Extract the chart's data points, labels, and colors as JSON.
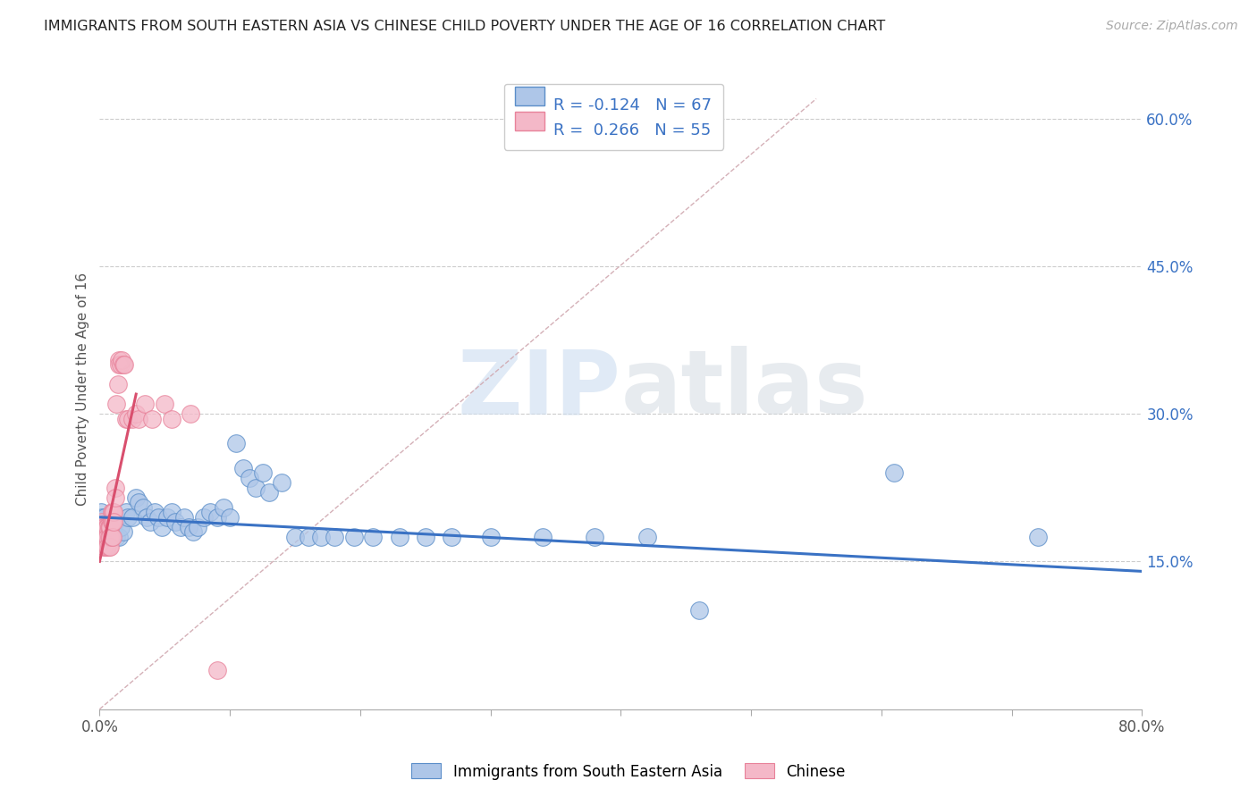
{
  "title": "IMMIGRANTS FROM SOUTH EASTERN ASIA VS CHINESE CHILD POVERTY UNDER THE AGE OF 16 CORRELATION CHART",
  "source": "Source: ZipAtlas.com",
  "ylabel": "Child Poverty Under the Age of 16",
  "xlim": [
    0.0,
    0.8
  ],
  "ylim": [
    0.0,
    0.65
  ],
  "xticks": [
    0.0,
    0.1,
    0.2,
    0.3,
    0.4,
    0.5,
    0.6,
    0.7,
    0.8
  ],
  "yticks_right": [
    0.15,
    0.3,
    0.45,
    0.6
  ],
  "ytick_labels_right": [
    "15.0%",
    "30.0%",
    "45.0%",
    "60.0%"
  ],
  "watermark_zip": "ZIP",
  "watermark_atlas": "atlas",
  "legend_blue_r": "-0.124",
  "legend_blue_n": "67",
  "legend_pink_r": "0.266",
  "legend_pink_n": "55",
  "legend_label_blue": "Immigrants from South Eastern Asia",
  "legend_label_pink": "Chinese",
  "blue_fill": "#aec6e8",
  "pink_fill": "#f4b8c8",
  "blue_edge": "#5b8ec9",
  "pink_edge": "#e8829a",
  "blue_line_color": "#3a72c4",
  "pink_line_color": "#d94f6e",
  "diagonal_color": "#d0a8b0",
  "blue_scatter_x": [
    0.001,
    0.002,
    0.002,
    0.003,
    0.003,
    0.004,
    0.004,
    0.005,
    0.005,
    0.006,
    0.007,
    0.007,
    0.008,
    0.009,
    0.01,
    0.012,
    0.013,
    0.015,
    0.016,
    0.018,
    0.02,
    0.022,
    0.025,
    0.028,
    0.03,
    0.033,
    0.036,
    0.039,
    0.042,
    0.045,
    0.048,
    0.052,
    0.055,
    0.058,
    0.062,
    0.065,
    0.068,
    0.072,
    0.075,
    0.08,
    0.085,
    0.09,
    0.095,
    0.1,
    0.105,
    0.11,
    0.115,
    0.12,
    0.125,
    0.13,
    0.14,
    0.15,
    0.16,
    0.17,
    0.18,
    0.195,
    0.21,
    0.23,
    0.25,
    0.27,
    0.3,
    0.34,
    0.38,
    0.42,
    0.46,
    0.61,
    0.72
  ],
  "blue_scatter_y": [
    0.2,
    0.195,
    0.185,
    0.19,
    0.175,
    0.18,
    0.195,
    0.185,
    0.175,
    0.19,
    0.185,
    0.175,
    0.19,
    0.18,
    0.185,
    0.19,
    0.175,
    0.175,
    0.185,
    0.18,
    0.2,
    0.195,
    0.195,
    0.215,
    0.21,
    0.205,
    0.195,
    0.19,
    0.2,
    0.195,
    0.185,
    0.195,
    0.2,
    0.19,
    0.185,
    0.195,
    0.185,
    0.18,
    0.185,
    0.195,
    0.2,
    0.195,
    0.205,
    0.195,
    0.27,
    0.245,
    0.235,
    0.225,
    0.24,
    0.22,
    0.23,
    0.175,
    0.175,
    0.175,
    0.175,
    0.175,
    0.175,
    0.175,
    0.175,
    0.175,
    0.175,
    0.175,
    0.175,
    0.175,
    0.1,
    0.24,
    0.175
  ],
  "pink_scatter_x": [
    0.001,
    0.001,
    0.002,
    0.002,
    0.002,
    0.003,
    0.003,
    0.003,
    0.004,
    0.004,
    0.004,
    0.005,
    0.005,
    0.005,
    0.006,
    0.006,
    0.006,
    0.006,
    0.007,
    0.007,
    0.007,
    0.007,
    0.008,
    0.008,
    0.008,
    0.008,
    0.009,
    0.009,
    0.009,
    0.01,
    0.01,
    0.01,
    0.011,
    0.011,
    0.012,
    0.012,
    0.013,
    0.014,
    0.015,
    0.015,
    0.016,
    0.017,
    0.018,
    0.019,
    0.02,
    0.022,
    0.025,
    0.028,
    0.03,
    0.035,
    0.04,
    0.05,
    0.055,
    0.07,
    0.09
  ],
  "pink_scatter_y": [
    0.185,
    0.17,
    0.19,
    0.175,
    0.18,
    0.185,
    0.175,
    0.165,
    0.185,
    0.175,
    0.165,
    0.185,
    0.175,
    0.165,
    0.185,
    0.185,
    0.175,
    0.165,
    0.185,
    0.185,
    0.175,
    0.165,
    0.185,
    0.185,
    0.175,
    0.165,
    0.2,
    0.19,
    0.175,
    0.2,
    0.19,
    0.175,
    0.2,
    0.19,
    0.225,
    0.215,
    0.31,
    0.33,
    0.355,
    0.35,
    0.35,
    0.355,
    0.35,
    0.35,
    0.295,
    0.295,
    0.295,
    0.3,
    0.295,
    0.31,
    0.295,
    0.31,
    0.295,
    0.3,
    0.04
  ],
  "blue_trend_x": [
    0.0,
    0.8
  ],
  "blue_trend_y": [
    0.195,
    0.14
  ],
  "pink_trend_x": [
    0.0,
    0.028
  ],
  "pink_trend_y": [
    0.15,
    0.32
  ]
}
